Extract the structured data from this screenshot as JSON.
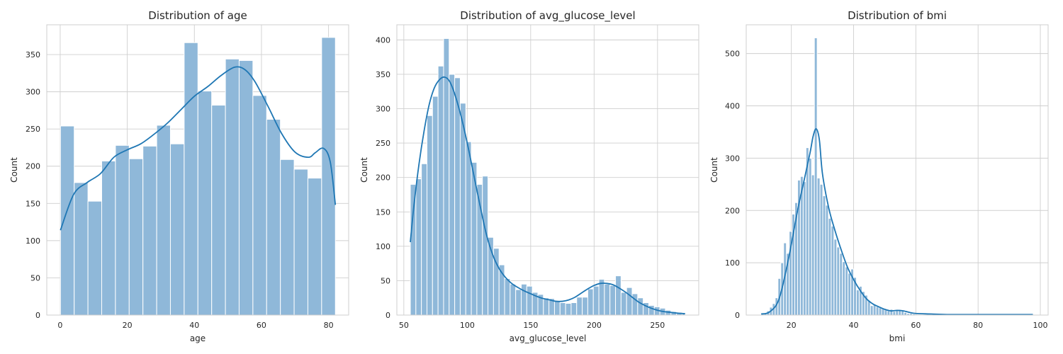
{
  "chart_data": [
    {
      "type": "histogram",
      "title": "Distribution of age",
      "xlabel": "age",
      "ylabel": "Count",
      "xlim": [
        -4,
        86
      ],
      "ylim": [
        0,
        390
      ],
      "xticks": [
        0,
        20,
        40,
        60,
        80
      ],
      "yticks": [
        0,
        50,
        100,
        150,
        200,
        250,
        300,
        350
      ],
      "grid": true,
      "bar_color": "#8fb8d9",
      "kde_color": "#1f77b4",
      "bin_edges": [
        0.08,
        4.18,
        8.28,
        12.37,
        16.47,
        20.57,
        24.67,
        28.77,
        32.86,
        36.96,
        41.06,
        45.16,
        49.26,
        53.35,
        57.45,
        61.55,
        65.65,
        69.75,
        73.84,
        77.94,
        82.04
      ],
      "counts": [
        254,
        178,
        153,
        207,
        228,
        210,
        227,
        255,
        230,
        366,
        301,
        282,
        344,
        342,
        295,
        263,
        209,
        196,
        184,
        373
      ],
      "kde": [
        [
          0.08,
          114
        ],
        [
          4,
          162
        ],
        [
          8,
          178
        ],
        [
          12,
          190
        ],
        [
          16,
          212
        ],
        [
          20,
          222
        ],
        [
          24,
          230
        ],
        [
          28,
          243
        ],
        [
          32,
          258
        ],
        [
          36,
          276
        ],
        [
          40,
          294
        ],
        [
          44,
          307
        ],
        [
          48,
          322
        ],
        [
          52,
          333
        ],
        [
          55,
          330
        ],
        [
          58,
          314
        ],
        [
          62,
          280
        ],
        [
          66,
          244
        ],
        [
          70,
          219
        ],
        [
          74,
          212
        ],
        [
          76,
          218
        ],
        [
          78.5,
          224
        ],
        [
          80.5,
          206
        ],
        [
          82.04,
          148
        ]
      ]
    },
    {
      "type": "histogram",
      "title": "Distribution of avg_glucose_level",
      "xlabel": "avg_glucose_level",
      "ylabel": "Count",
      "xlim": [
        44.5,
        282.5
      ],
      "ylim": [
        0,
        422
      ],
      "xticks": [
        50,
        100,
        150,
        200,
        250
      ],
      "yticks": [
        0,
        50,
        100,
        150,
        200,
        250,
        300,
        350,
        400
      ],
      "grid": true,
      "bar_color": "#8fb8d9",
      "kde_color": "#1f77b4",
      "bin_edges": [
        55.12,
        59.49,
        63.86,
        68.24,
        72.61,
        76.98,
        81.35,
        85.72,
        90.1,
        94.47,
        98.84,
        103.21,
        107.58,
        111.95,
        116.33,
        120.7,
        125.07,
        129.44,
        133.81,
        138.18,
        142.56,
        146.93,
        151.3,
        155.67,
        160.04,
        164.41,
        168.79,
        173.16,
        177.53,
        181.9,
        186.27,
        190.65,
        195.02,
        199.39,
        203.76,
        208.13,
        212.5,
        216.88,
        221.25,
        225.62,
        229.99,
        234.36,
        238.73,
        243.11,
        247.48,
        251.85,
        256.22,
        260.59,
        264.96,
        269.34,
        271.74
      ],
      "counts": [
        190,
        198,
        220,
        290,
        318,
        362,
        402,
        350,
        345,
        308,
        252,
        222,
        190,
        202,
        113,
        97,
        73,
        53,
        45,
        37,
        45,
        42,
        33,
        30,
        25,
        24,
        20,
        18,
        17,
        18,
        26,
        26,
        38,
        42,
        52,
        45,
        43,
        57,
        33,
        40,
        31,
        25,
        18,
        14,
        12,
        10,
        7,
        5,
        4,
        3
      ],
      "kde": [
        [
          55.12,
          106
        ],
        [
          58,
          160
        ],
        [
          62,
          220
        ],
        [
          66,
          268
        ],
        [
          70,
          306
        ],
        [
          74,
          330
        ],
        [
          78,
          342
        ],
        [
          82,
          346
        ],
        [
          86,
          340
        ],
        [
          90,
          322
        ],
        [
          95,
          290
        ],
        [
          100,
          250
        ],
        [
          105,
          205
        ],
        [
          110,
          160
        ],
        [
          115,
          118
        ],
        [
          120,
          88
        ],
        [
          125,
          68
        ],
        [
          130,
          55
        ],
        [
          135,
          46
        ],
        [
          140,
          40
        ],
        [
          145,
          35
        ],
        [
          150,
          31
        ],
        [
          155,
          27
        ],
        [
          160,
          24
        ],
        [
          165,
          22
        ],
        [
          170,
          20
        ],
        [
          175,
          20
        ],
        [
          180,
          22
        ],
        [
          185,
          26
        ],
        [
          190,
          32
        ],
        [
          195,
          38
        ],
        [
          200,
          43
        ],
        [
          205,
          46
        ],
        [
          210,
          46
        ],
        [
          215,
          44
        ],
        [
          220,
          39
        ],
        [
          225,
          33
        ],
        [
          230,
          26
        ],
        [
          235,
          19
        ],
        [
          240,
          14
        ],
        [
          245,
          10
        ],
        [
          250,
          7
        ],
        [
          255,
          5
        ],
        [
          260,
          4
        ],
        [
          265,
          3
        ],
        [
          271.74,
          2
        ]
      ]
    },
    {
      "type": "histogram",
      "title": "Distribution of bmi",
      "xlabel": "bmi",
      "ylabel": "Count",
      "xlim": [
        5.5,
        102.5
      ],
      "ylim": [
        0,
        555
      ],
      "xticks": [
        20,
        40,
        60,
        80,
        100
      ],
      "yticks": [
        0,
        100,
        200,
        300,
        400,
        500
      ],
      "grid": true,
      "bar_color": "#8fb8d9",
      "kde_color": "#1f77b4",
      "bin_edges": [
        10.3,
        11.2,
        12.1,
        13.0,
        13.9,
        14.8,
        15.7,
        16.6,
        17.5,
        18.4,
        19.3,
        20.2,
        21.1,
        22.0,
        22.9,
        23.8,
        24.7,
        25.6,
        26.5,
        27.4,
        28.3,
        29.2,
        30.1,
        31.0,
        31.9,
        32.8,
        33.7,
        34.6,
        35.5,
        36.4,
        37.3,
        38.2,
        39.1,
        40.0,
        40.9,
        41.8,
        42.7,
        43.6,
        44.5,
        45.4,
        46.3,
        47.2,
        48.1,
        49.0,
        49.9,
        50.8,
        51.7,
        52.6,
        53.5,
        54.4,
        55.3,
        56.2,
        57.1,
        58.0,
        58.9,
        59.8
      ],
      "counts": [
        2,
        4,
        8,
        15,
        22,
        33,
        70,
        100,
        138,
        118,
        160,
        193,
        215,
        258,
        265,
        255,
        320,
        300,
        268,
        530,
        262,
        250,
        228,
        210,
        185,
        170,
        145,
        130,
        118,
        102,
        92,
        80,
        88,
        72,
        48,
        55,
        45,
        38,
        28,
        18,
        20,
        16,
        14,
        12,
        10,
        8,
        11,
        7,
        9,
        10,
        8,
        5,
        3,
        3,
        2
      ],
      "kde": [
        [
          10.3,
          2
        ],
        [
          13,
          6
        ],
        [
          16,
          30
        ],
        [
          19,
          105
        ],
        [
          22,
          200
        ],
        [
          24,
          255
        ],
        [
          26,
          310
        ],
        [
          27,
          342
        ],
        [
          28,
          356
        ],
        [
          29,
          335
        ],
        [
          30,
          270
        ],
        [
          32,
          205
        ],
        [
          34,
          162
        ],
        [
          36,
          125
        ],
        [
          38,
          92
        ],
        [
          40,
          68
        ],
        [
          42,
          48
        ],
        [
          44,
          32
        ],
        [
          46,
          22
        ],
        [
          48,
          16
        ],
        [
          50,
          11
        ],
        [
          52,
          8
        ],
        [
          54,
          9
        ],
        [
          56,
          8
        ],
        [
          58,
          5
        ],
        [
          60,
          3
        ],
        [
          65,
          2
        ],
        [
          70,
          1
        ],
        [
          80,
          1
        ],
        [
          90,
          1
        ],
        [
          97.6,
          1
        ]
      ]
    }
  ]
}
